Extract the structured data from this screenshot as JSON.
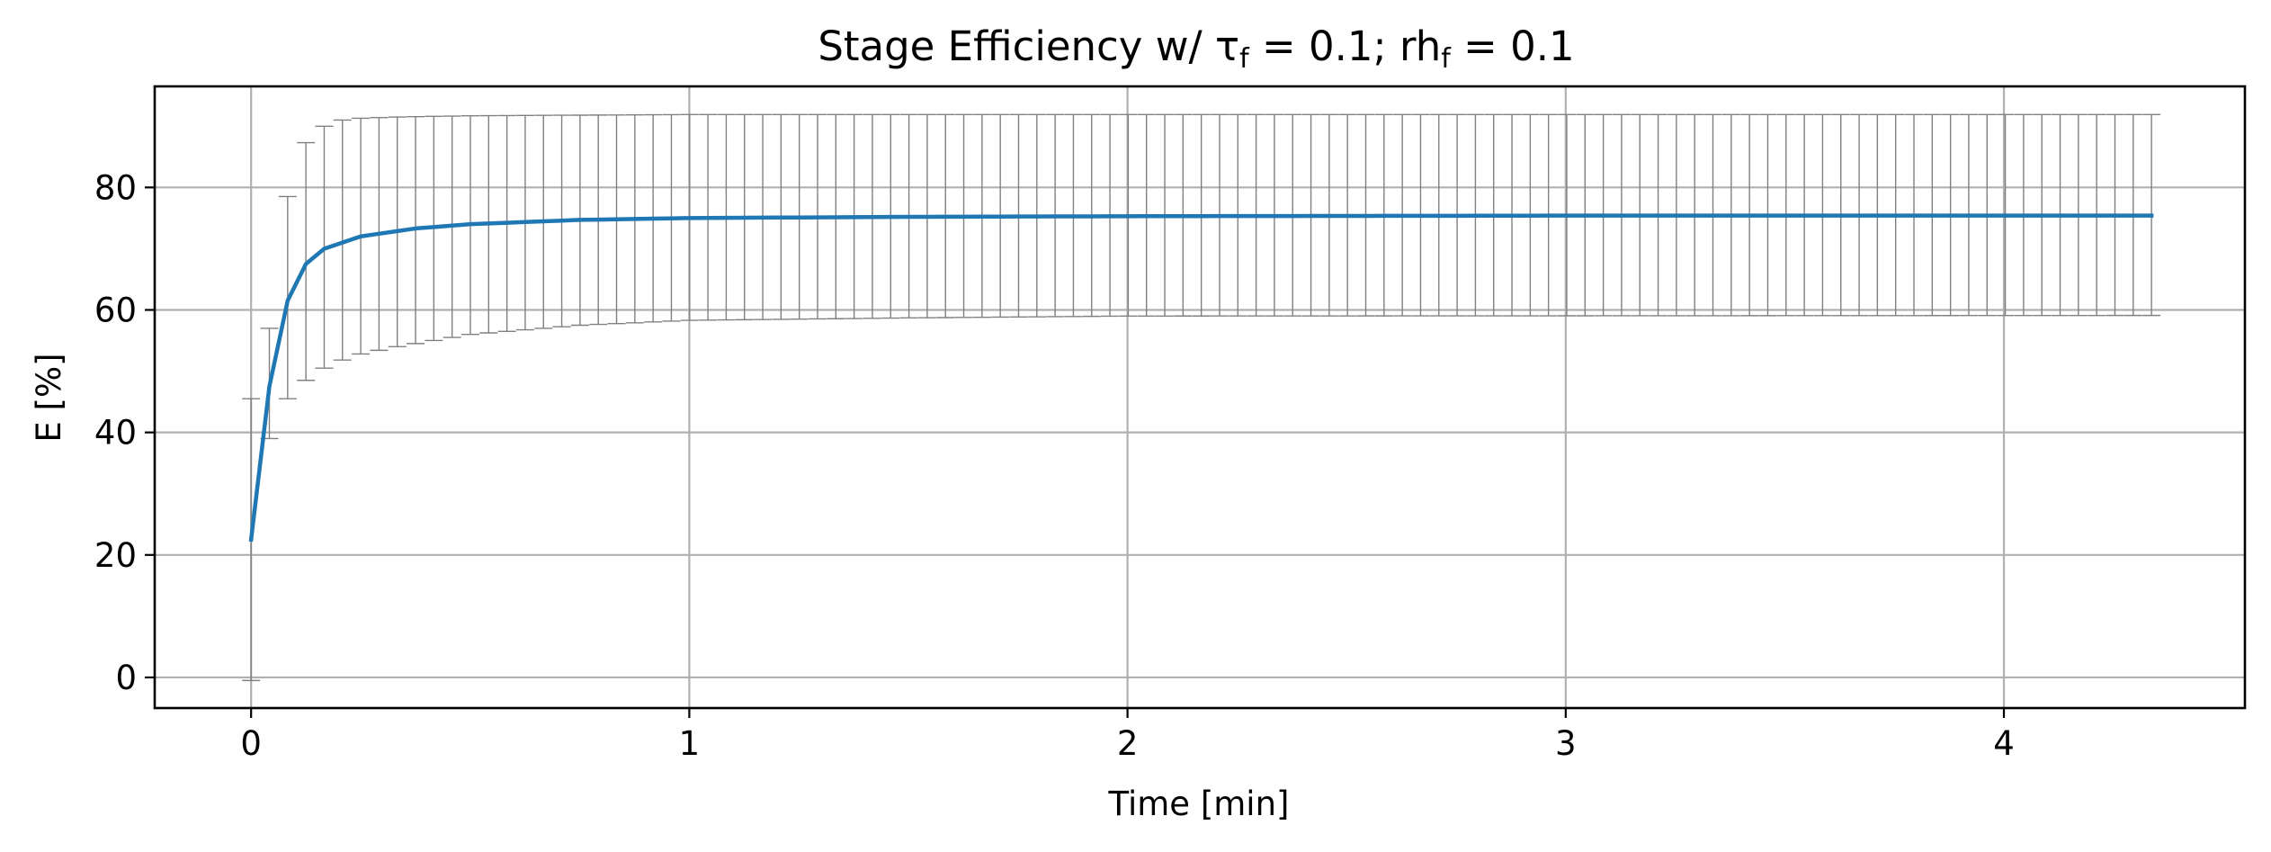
{
  "chart_data": {
    "type": "line",
    "title": "Stage Efficiency w/ τ_f = 0.1; rh_f = 0.1",
    "title_parts": {
      "pre": "Stage Efficiency w/ τ",
      "sub1": "f",
      "mid": " = 0.1; rh",
      "sub2": "f",
      "post": " = 0.1"
    },
    "xlabel": "Time [min]",
    "ylabel": "E [%]",
    "xlim": [
      -0.22,
      4.55
    ],
    "ylim": [
      -5,
      96.5
    ],
    "xticks": [
      0,
      1,
      2,
      3,
      4
    ],
    "xtick_labels": [
      "0",
      "1",
      "2",
      "3",
      "4"
    ],
    "yticks": [
      0,
      20,
      40,
      60,
      80
    ],
    "ytick_labels": [
      "0",
      "20",
      "40",
      "60",
      "80"
    ],
    "grid": true,
    "x_step": 0.0417,
    "n_points": 105,
    "series": [
      {
        "color": "#1f77b4",
        "mean_anchors": [
          [
            0,
            22.5
          ],
          [
            0.0417,
            47.5
          ],
          [
            0.0833,
            61.5
          ],
          [
            0.125,
            67.5
          ],
          [
            0.167,
            70
          ],
          [
            0.25,
            72
          ],
          [
            0.375,
            73.3
          ],
          [
            0.5,
            74
          ],
          [
            0.75,
            74.7
          ],
          [
            1.0,
            75
          ],
          [
            1.5,
            75.2
          ],
          [
            2.0,
            75.3
          ],
          [
            3.0,
            75.4
          ],
          [
            4.33,
            75.4
          ]
        ],
        "upper_anchors": [
          [
            0,
            45.5
          ],
          [
            0.0417,
            57
          ],
          [
            0.0833,
            78.5
          ],
          [
            0.125,
            87.3
          ],
          [
            0.167,
            90
          ],
          [
            0.208,
            91
          ],
          [
            0.25,
            91.3
          ],
          [
            0.333,
            91.5
          ],
          [
            0.5,
            91.7
          ],
          [
            0.75,
            91.8
          ],
          [
            1.0,
            91.9
          ],
          [
            4.33,
            91.9
          ]
        ],
        "lower_anchors": [
          [
            0,
            -0.5
          ],
          [
            0.0417,
            39
          ],
          [
            0.0833,
            45.5
          ],
          [
            0.125,
            48.5
          ],
          [
            0.167,
            50.5
          ],
          [
            0.208,
            51.8
          ],
          [
            0.25,
            52.8
          ],
          [
            0.333,
            54
          ],
          [
            0.5,
            56
          ],
          [
            0.75,
            57.5
          ],
          [
            1.0,
            58.3
          ],
          [
            1.5,
            58.7
          ],
          [
            2.0,
            59
          ],
          [
            4.33,
            59.1
          ]
        ],
        "error_bar_color": "#808080"
      }
    ]
  }
}
